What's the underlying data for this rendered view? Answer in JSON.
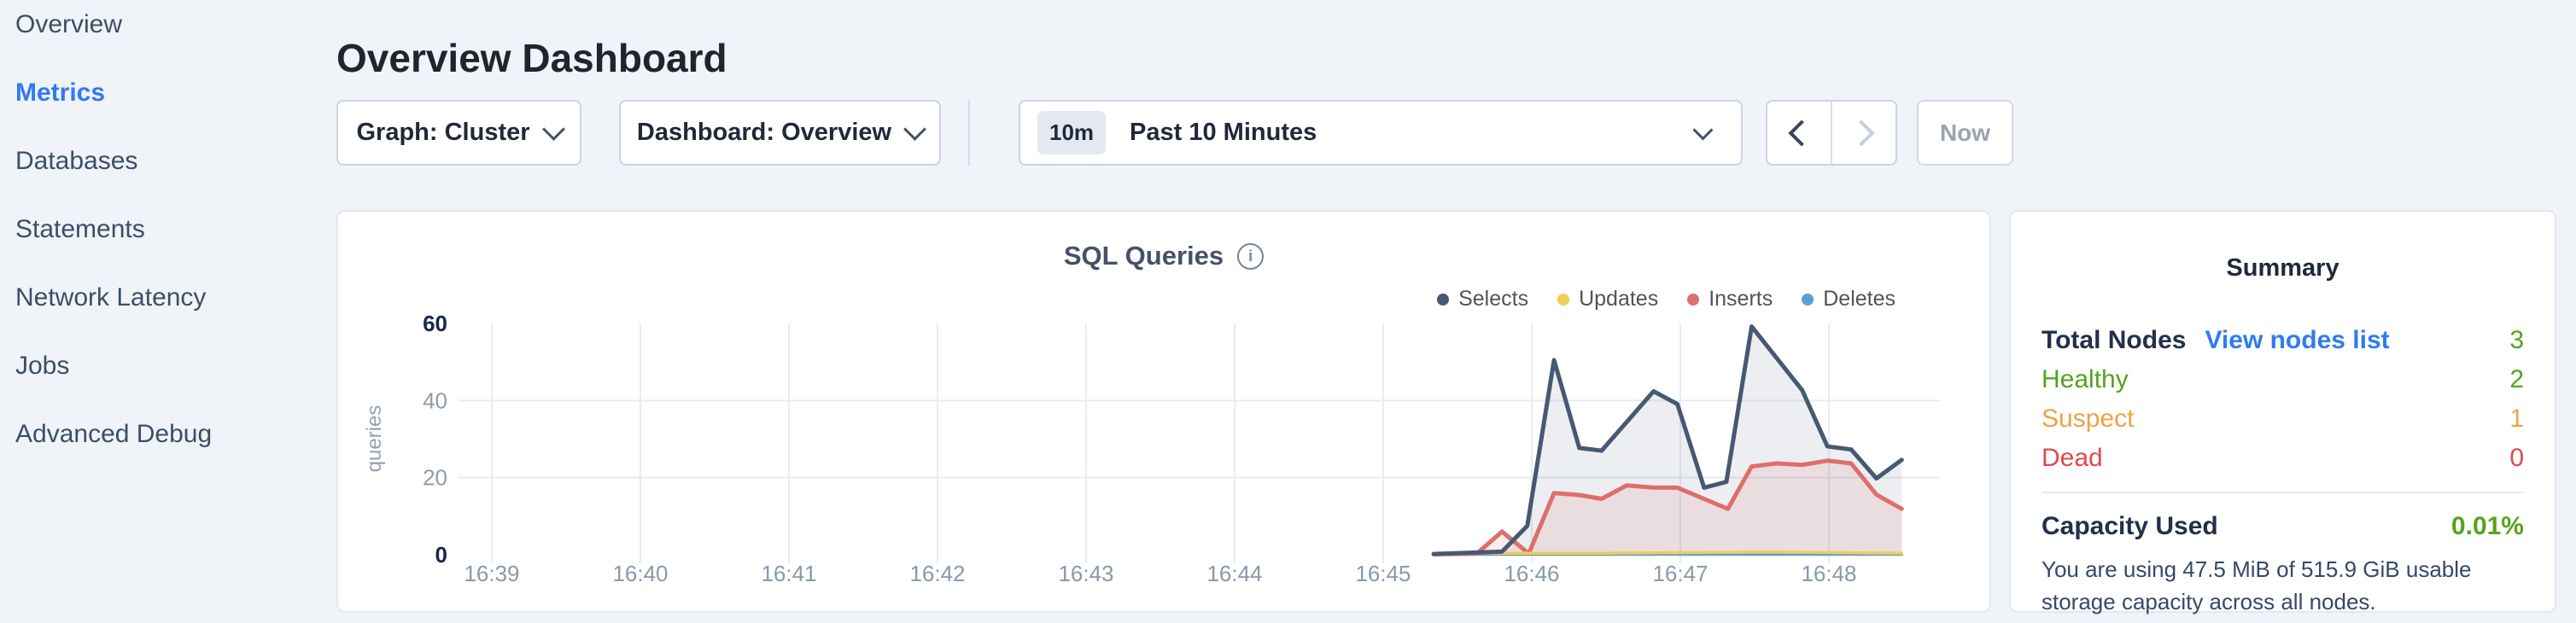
{
  "page": {
    "background": "#f0f3f8"
  },
  "sidebar": {
    "items": [
      {
        "label": "Overview",
        "active": false
      },
      {
        "label": "Metrics",
        "active": true
      },
      {
        "label": "Databases",
        "active": false
      },
      {
        "label": "Statements",
        "active": false
      },
      {
        "label": "Network Latency",
        "active": false
      },
      {
        "label": "Jobs",
        "active": false
      },
      {
        "label": "Advanced Debug",
        "active": false
      }
    ]
  },
  "header": {
    "title": "Overview Dashboard"
  },
  "toolbar": {
    "graph_dropdown_label": "Graph: Cluster",
    "dashboard_dropdown_label": "Dashboard: Overview",
    "time_badge": "10m",
    "time_label": "Past 10 Minutes",
    "now_label": "Now"
  },
  "chart_data": {
    "type": "area",
    "title": "SQL Queries",
    "ylabel": "queries",
    "ylim": [
      0,
      60
    ],
    "yticks": [
      60,
      40,
      20,
      0
    ],
    "grid_y_values": [
      40,
      20
    ],
    "x_tick_labels": [
      "16:39",
      "16:40",
      "16:41",
      "16:42",
      "16:43",
      "16:44",
      "16:45",
      "16:46",
      "16:47",
      "16:48"
    ],
    "legend_position": "top-right",
    "grid": true,
    "series": [
      {
        "name": "Selects",
        "color": "#475872",
        "fill": "rgba(71,88,114,0.10)",
        "line_width": 5,
        "points": [
          [
            6.34,
            0.2
          ],
          [
            6.8,
            0.8
          ],
          [
            6.97,
            7.5
          ],
          [
            7.15,
            50.5
          ],
          [
            7.32,
            27.7
          ],
          [
            7.47,
            27.0
          ],
          [
            7.82,
            42.4
          ],
          [
            7.98,
            39.1
          ],
          [
            8.16,
            17.4
          ],
          [
            8.31,
            18.9
          ],
          [
            8.48,
            59.2
          ],
          [
            8.82,
            42.7
          ],
          [
            8.99,
            28.1
          ],
          [
            9.15,
            27.3
          ],
          [
            9.32,
            19.8
          ],
          [
            9.49,
            24.6
          ]
        ]
      },
      {
        "name": "Updates",
        "color": "#f1cd53",
        "fill": null,
        "line_width": 3.5,
        "points": [
          [
            6.34,
            0.4
          ],
          [
            7.5,
            0.4
          ],
          [
            8.6,
            0.7
          ],
          [
            9.49,
            0.4
          ]
        ]
      },
      {
        "name": "Inserts",
        "color": "#df6e6b",
        "fill": "rgba(223,110,107,0.13)",
        "line_width": 5,
        "points": [
          [
            6.34,
            0.1
          ],
          [
            6.63,
            0.3
          ],
          [
            6.8,
            6.0
          ],
          [
            6.98,
            0.3
          ],
          [
            7.15,
            16.0
          ],
          [
            7.32,
            15.5
          ],
          [
            7.47,
            14.5
          ],
          [
            7.64,
            18.0
          ],
          [
            7.82,
            17.4
          ],
          [
            7.98,
            17.4
          ],
          [
            8.32,
            11.9
          ],
          [
            8.48,
            22.9
          ],
          [
            8.65,
            23.7
          ],
          [
            8.82,
            23.3
          ],
          [
            8.99,
            24.4
          ],
          [
            9.15,
            23.7
          ],
          [
            9.32,
            15.6
          ],
          [
            9.49,
            11.9
          ]
        ]
      },
      {
        "name": "Deletes",
        "color": "#5b9fd4",
        "fill": null,
        "line_width": 3.5,
        "points": [
          [
            6.34,
            0.1
          ],
          [
            9.49,
            0.1
          ]
        ]
      }
    ]
  },
  "summary": {
    "title": "Summary",
    "total_label": "Total Nodes",
    "view_link": "View nodes list",
    "total_value": "3",
    "total_value_color": "#55a31d",
    "link_color": "#2e7cf0",
    "node_rows": [
      {
        "label": "Healthy",
        "value": "2",
        "color": "#55a31d"
      },
      {
        "label": "Suspect",
        "value": "1",
        "color": "#efa244"
      },
      {
        "label": "Dead",
        "value": "0",
        "color": "#e2484a"
      }
    ],
    "capacity_label": "Capacity Used",
    "capacity_value": "0.01%",
    "capacity_value_color": "#55a31d",
    "capacity_note": "You are using 47.5 MiB of 515.9 GiB usable storage capacity across all nodes."
  }
}
